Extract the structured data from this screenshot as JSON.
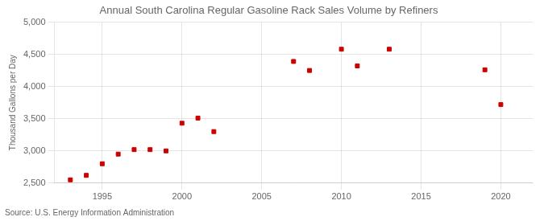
{
  "chart_data": {
    "type": "scatter",
    "title": "Annual South Carolina Regular Gasoline Rack Sales Volume by Refiners",
    "ylabel": "Thousand Gallons per Day",
    "annotation": "Source: U.S. Energy Information Administration",
    "x": [
      1993,
      1994,
      1995,
      1996,
      1997,
      1998,
      1999,
      2000,
      2001,
      2002,
      2007,
      2008,
      2010,
      2011,
      2013,
      2019,
      2020
    ],
    "values": [
      2550,
      2620,
      2800,
      2950,
      3020,
      3020,
      3000,
      3430,
      3510,
      3300,
      4390,
      4250,
      4580,
      4320,
      4580,
      4260,
      3720
    ],
    "color": "#cc0000",
    "marker": "square",
    "xlim": [
      1992,
      2022
    ],
    "xticks": [
      1995,
      2000,
      2005,
      2010,
      2015,
      2020
    ],
    "ylim": [
      2500,
      5000
    ],
    "yticks": [
      {
        "value": 2500,
        "label": "2,500"
      },
      {
        "value": 3000,
        "label": "3,000"
      },
      {
        "value": 3500,
        "label": "3,500"
      },
      {
        "value": 4000,
        "label": "4,000"
      },
      {
        "value": 4500,
        "label": "4,500"
      },
      {
        "value": 5000,
        "label": "5,000"
      }
    ],
    "grid": true
  }
}
